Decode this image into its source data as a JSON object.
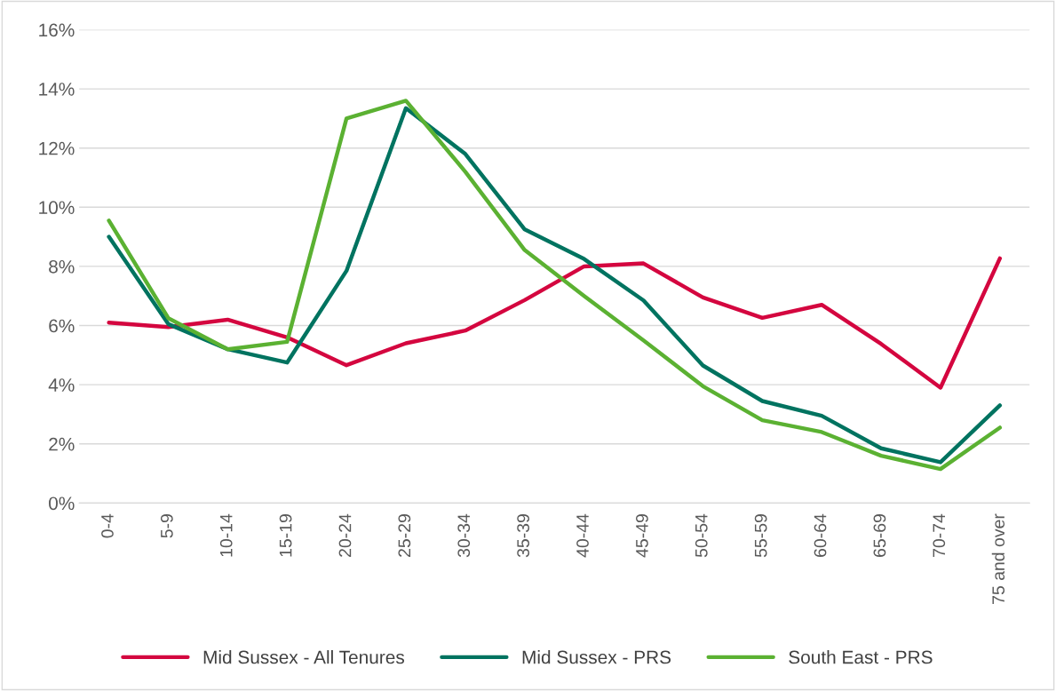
{
  "chart_data": {
    "type": "line",
    "categories": [
      "0-4",
      "5-9",
      "10-14",
      "15-19",
      "20-24",
      "25-29",
      "30-34",
      "35-39",
      "40-44",
      "45-49",
      "50-54",
      "55-59",
      "60-64",
      "65-69",
      "70-74",
      "75 and over"
    ],
    "series": [
      {
        "name": "Mid Sussex - All Tenures",
        "color": "#d4063f",
        "values": [
          6.1,
          5.95,
          6.2,
          5.6,
          4.66,
          5.4,
          5.83,
          6.86,
          8.0,
          8.1,
          6.95,
          6.26,
          6.7,
          5.38,
          3.9,
          8.27
        ]
      },
      {
        "name": "Mid Sussex - PRS",
        "color": "#007360",
        "values": [
          9.0,
          6.05,
          5.2,
          4.75,
          7.85,
          13.35,
          11.8,
          9.25,
          8.25,
          6.85,
          4.65,
          3.45,
          2.95,
          1.85,
          1.38,
          3.3
        ]
      },
      {
        "name": "South East - PRS",
        "color": "#5bb132",
        "values": [
          9.55,
          6.25,
          5.2,
          5.45,
          13.0,
          13.6,
          11.2,
          8.55,
          7.0,
          5.5,
          3.95,
          2.8,
          2.4,
          1.6,
          1.15,
          2.55
        ]
      }
    ],
    "ylim": [
      0,
      16
    ],
    "yticks": [
      {
        "value": 0,
        "label": "0%"
      },
      {
        "value": 2,
        "label": "2%"
      },
      {
        "value": 4,
        "label": "4%"
      },
      {
        "value": 6,
        "label": "6%"
      },
      {
        "value": 8,
        "label": "8%"
      },
      {
        "value": 10,
        "label": "10%"
      },
      {
        "value": 12,
        "label": "12%"
      },
      {
        "value": 14,
        "label": "14%"
      },
      {
        "value": 16,
        "label": "16%"
      }
    ],
    "grid": "y",
    "legend": "bottom",
    "marker": "none",
    "line_style": "solid"
  }
}
